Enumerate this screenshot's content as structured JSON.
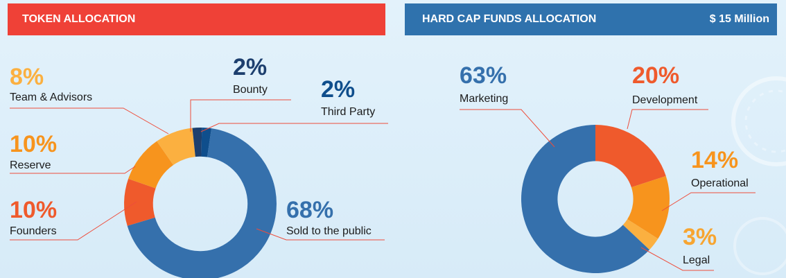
{
  "headers": {
    "token_title": "TOKEN ALLOCATION",
    "funds_title": "HARD CAP FUNDS ALLOCATION",
    "funds_total": "$ 15 Million"
  },
  "chart_data": [
    {
      "type": "pie",
      "title": "TOKEN ALLOCATION",
      "categories": [
        "Sold to the public",
        "Founders",
        "Reserve",
        "Team & Advisors",
        "Bounty",
        "Third Party"
      ],
      "values": [
        68,
        10,
        10,
        8,
        2,
        2
      ],
      "labels": [
        "68%",
        "10%",
        "10%",
        "8%",
        "2%",
        "2%"
      ],
      "colors": [
        "#3570ac",
        "#ef5a2c",
        "#f7941d",
        "#fbb040",
        "#1d3f6e",
        "#0f4e8c"
      ],
      "label_colors": [
        "#3570ac",
        "#ef5a2c",
        "#f7941d",
        "#fbb040",
        "#1d3f6e",
        "#0f4e8c"
      ],
      "hole": 0.62
    },
    {
      "type": "pie",
      "title": "HARD CAP FUNDS ALLOCATION",
      "categories": [
        "Marketing",
        "Development",
        "Operational",
        "Legal"
      ],
      "values": [
        63,
        20,
        14,
        3
      ],
      "labels": [
        "63%",
        "20%",
        "14%",
        "3%"
      ],
      "colors": [
        "#3570ac",
        "#ef5a2c",
        "#f7941d",
        "#fbb040"
      ],
      "label_colors": [
        "#3570ac",
        "#ef5a2c",
        "#f7941d",
        "#f7a531"
      ],
      "hole": 0.51
    }
  ]
}
